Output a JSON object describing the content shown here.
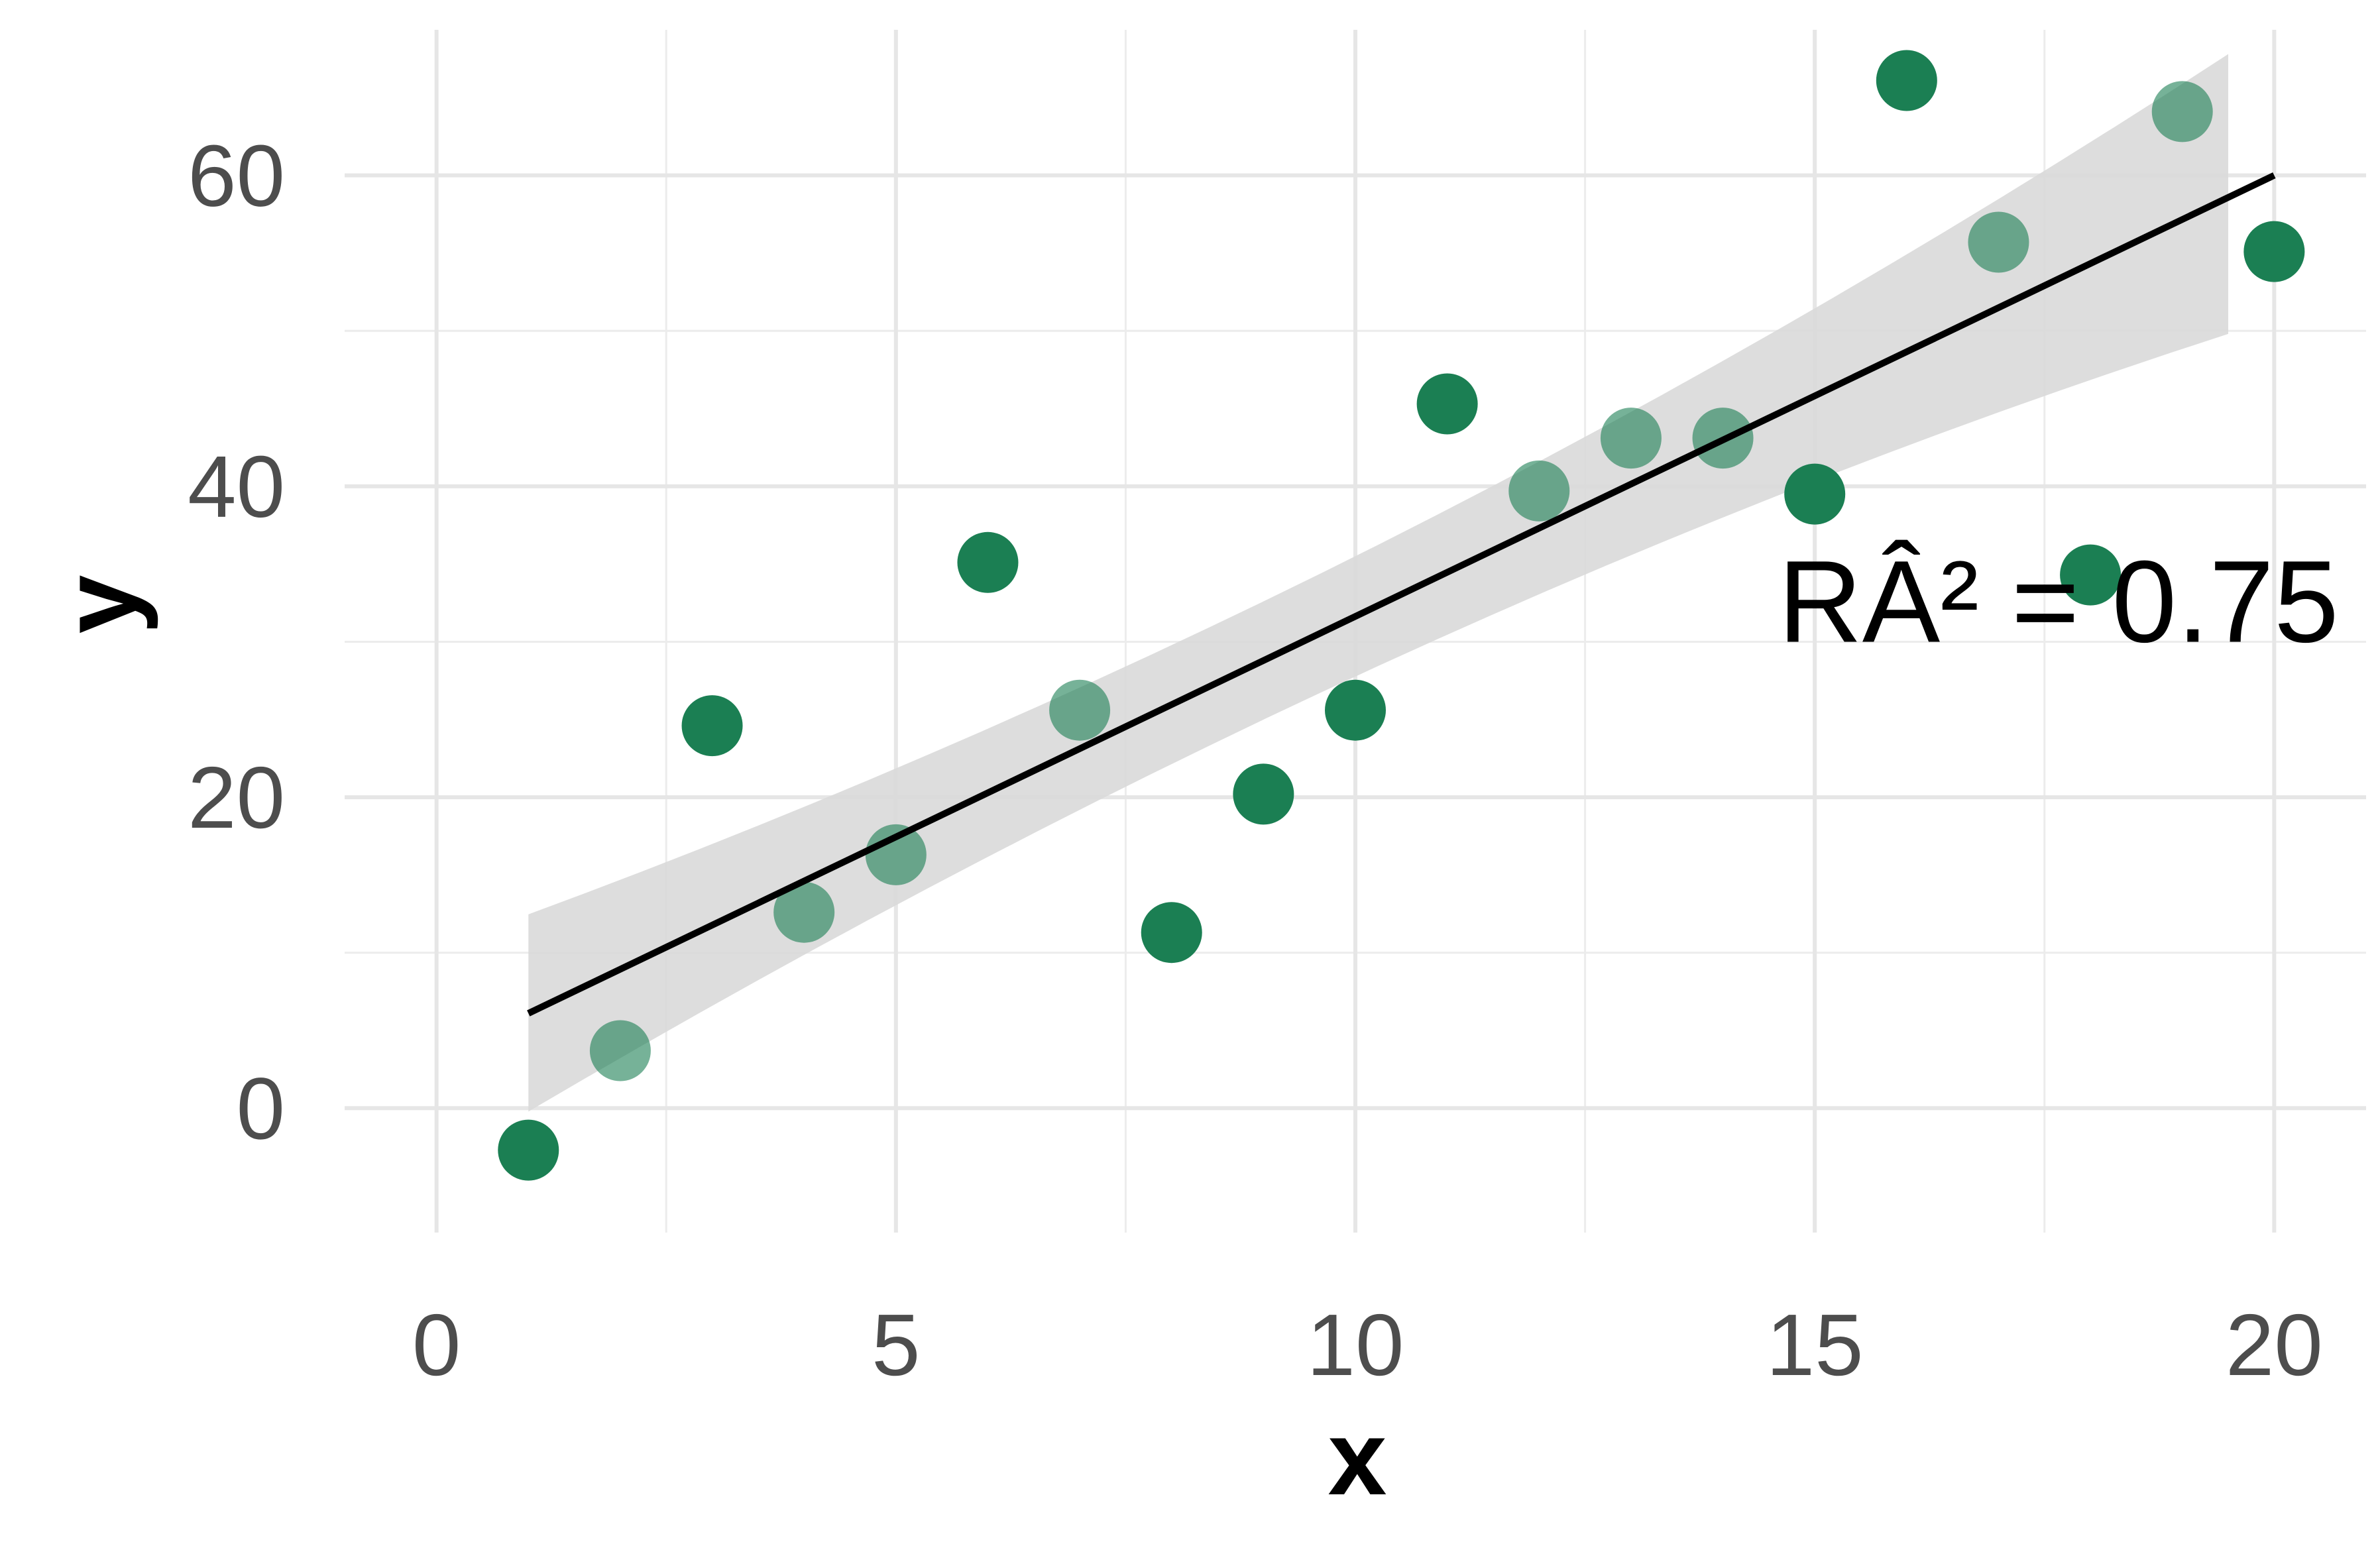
{
  "chart_data": {
    "type": "scatter",
    "title": "",
    "xlabel": "x",
    "ylabel": "y",
    "xlim": [
      -1,
      21
    ],
    "ylim": [
      -8,
      70
    ],
    "x_ticks": [
      0,
      5,
      10,
      15,
      20
    ],
    "y_ticks": [
      0,
      20,
      40,
      60
    ],
    "x_tick_labels": [
      "0",
      "5",
      "10",
      "15",
      "20"
    ],
    "y_tick_labels": [
      "0",
      "20",
      "40",
      "60"
    ],
    "grid": true,
    "series": [
      {
        "x": [
          1,
          3,
          6,
          8,
          9,
          10,
          11,
          15,
          16,
          18,
          20
        ],
        "y": [
          -2.7,
          24.6,
          35.1,
          11.3,
          20.2,
          25.6,
          45.3,
          39.5,
          66.1,
          34.3,
          55.1
        ],
        "color": "#1b7f53",
        "opacity": 1.0
      },
      {
        "x": [
          2,
          4,
          5,
          7,
          12,
          13,
          14,
          17,
          19
        ],
        "y": [
          3.7,
          12.6,
          16.3,
          25.6,
          39.7,
          43.1,
          43.1,
          55.7,
          64.1
        ],
        "color": "#1b7f53",
        "opacity": 0.6
      }
    ],
    "fit_line": {
      "x": [
        1,
        20
      ],
      "y": [
        6.1,
        60.0
      ],
      "color": "#000000"
    },
    "confidence_band": {
      "x": [
        1,
        19.5
      ],
      "lower": [
        -2.5,
        49.8
      ],
      "upper": [
        14.8,
        67.8
      ],
      "color": "#d9d9d9"
    },
    "annotation": {
      "text": "RÂ² = 0.75",
      "x": 14.6,
      "y": 30
    }
  }
}
